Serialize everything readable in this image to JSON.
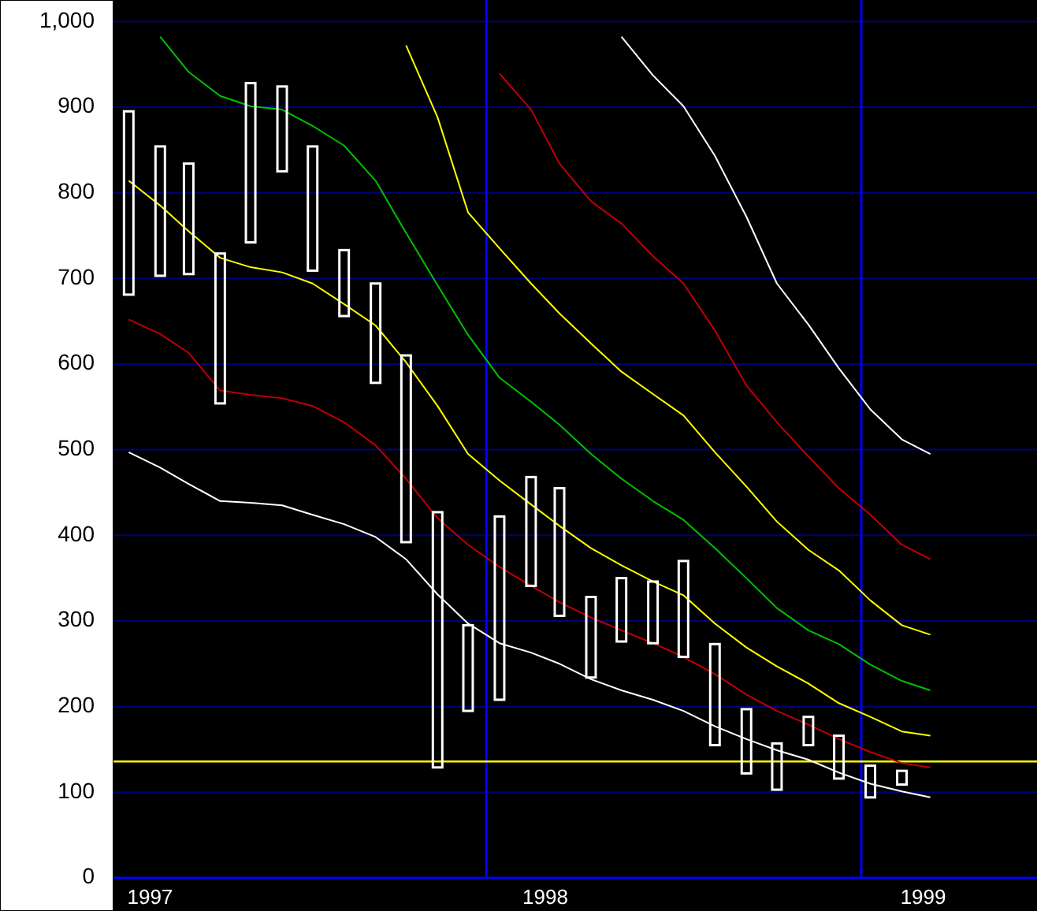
{
  "chart_data": {
    "type": "bar",
    "x": [
      "1997-01",
      "1997-02",
      "1997-03",
      "1997-04",
      "1997-05",
      "1997-06",
      "1997-07",
      "1997-08",
      "1997-09",
      "1997-10",
      "1997-11",
      "1997-12",
      "1998-01",
      "1998-02",
      "1998-03",
      "1998-04",
      "1998-05",
      "1998-06",
      "1998-07",
      "1998-08",
      "1998-09",
      "1998-10",
      "1998-11",
      "1998-12",
      "1999-01",
      "1999-02"
    ],
    "xlim": [
      "1996-12-17",
      "1999-06-14"
    ],
    "xticks": [
      {
        "value": "1997-01-22",
        "label": "1997"
      },
      {
        "value": "1998-02-15",
        "label": "1998"
      },
      {
        "value": "1999-02-22",
        "label": "1999"
      }
    ],
    "ylim": [
      0,
      1025
    ],
    "yticks": [
      0,
      100,
      200,
      300,
      400,
      500,
      600,
      700,
      800,
      900,
      {
        "value": 1000,
        "label": "1,000"
      }
    ],
    "grid": "y",
    "ref_lines": [
      {
        "axis": "x",
        "value": "1997-12-19",
        "color": "#0000ff"
      },
      {
        "axis": "x",
        "value": "1998-12-23",
        "color": "#0000ff"
      },
      {
        "axis": "y",
        "value": 136,
        "color": "#ffff00"
      }
    ],
    "series": [
      {
        "color": "#ffffff",
        "base": [
          681,
          703,
          705,
          554,
          742,
          825,
          709,
          656,
          578,
          392,
          129,
          195,
          208,
          341,
          306,
          234,
          276,
          274,
          258,
          155,
          122,
          103,
          155,
          116,
          94,
          109
        ],
        "values": [
          214,
          151,
          129,
          175,
          186,
          99,
          145,
          77,
          116,
          218,
          298,
          100,
          214,
          127,
          149,
          94,
          74,
          72,
          112,
          118,
          75,
          54,
          33,
          50,
          37,
          16
        ]
      },
      {
        "type": "line",
        "color": "#ffffff",
        "x": [
          "1997-01",
          "1997-02",
          "1997-03",
          "1997-04",
          "1997-05",
          "1997-06",
          "1997-07",
          "1997-08",
          "1997-09",
          "1997-10",
          "1997-11",
          "1997-12",
          "1998-01",
          "1998-02",
          "1998-03",
          "1998-04",
          "1998-05",
          "1998-06",
          "1998-07",
          "1998-08",
          "1998-09",
          "1998-10",
          "1998-11",
          "1998-12",
          "1999-01",
          "1999-02",
          "1999-03"
        ],
        "values": [
          497,
          479,
          460,
          440,
          438,
          435,
          424,
          413,
          398,
          372,
          331,
          297,
          274,
          263,
          250,
          232,
          219,
          208,
          195,
          177,
          162,
          149,
          138,
          123,
          110,
          101,
          94
        ]
      },
      {
        "type": "line",
        "color": "#c00000",
        "x": [
          "1997-01",
          "1997-02",
          "1997-03",
          "1997-04",
          "1997-05",
          "1997-06",
          "1997-07",
          "1997-08",
          "1997-09",
          "1997-10",
          "1997-11",
          "1997-12",
          "1998-01",
          "1998-02",
          "1998-03",
          "1998-04",
          "1998-05",
          "1998-06",
          "1998-07",
          "1998-08",
          "1998-09",
          "1998-10",
          "1998-11",
          "1998-12",
          "1999-01",
          "1999-02",
          "1999-03"
        ],
        "values": [
          652,
          635,
          613,
          569,
          564,
          560,
          551,
          532,
          505,
          466,
          420,
          389,
          363,
          341,
          322,
          304,
          289,
          274,
          258,
          238,
          214,
          195,
          179,
          162,
          147,
          134,
          129
        ]
      },
      {
        "type": "line",
        "color": "#ffff00",
        "x": [
          "1997-01",
          "1997-02",
          "1997-03",
          "1997-04",
          "1997-05",
          "1997-06",
          "1997-07",
          "1997-08",
          "1997-09",
          "1997-10",
          "1997-11",
          "1997-12",
          "1998-01",
          "1998-02",
          "1998-03",
          "1998-04",
          "1998-05",
          "1998-06",
          "1998-07",
          "1998-08",
          "1998-09",
          "1998-10",
          "1998-11",
          "1998-12",
          "1999-01",
          "1999-02",
          "1999-03"
        ],
        "values": [
          814,
          785,
          755,
          724,
          713,
          707,
          694,
          670,
          645,
          602,
          551,
          495,
          464,
          436,
          411,
          385,
          365,
          346,
          330,
          297,
          269,
          247,
          227,
          204,
          188,
          171,
          166
        ]
      },
      {
        "type": "line",
        "color": "#00c000",
        "x": [
          "1997-02",
          "1997-03",
          "1997-04",
          "1997-05",
          "1997-06",
          "1997-07",
          "1997-08",
          "1997-09",
          "1997-10",
          "1997-11",
          "1997-12",
          "1998-01",
          "1998-02",
          "1998-03",
          "1998-04",
          "1998-05",
          "1998-06",
          "1998-07",
          "1998-08",
          "1998-09",
          "1998-10",
          "1998-11",
          "1998-12",
          "1999-01",
          "1999-02",
          "1999-03"
        ],
        "values": [
          982,
          941,
          913,
          901,
          897,
          878,
          855,
          814,
          753,
          692,
          634,
          584,
          556,
          529,
          495,
          466,
          440,
          418,
          385,
          350,
          315,
          289,
          273,
          249,
          230,
          219
        ]
      },
      {
        "type": "line",
        "color": "#ffff00",
        "x": [
          "1997-10",
          "1997-11",
          "1997-12",
          "1998-01",
          "1998-02",
          "1998-03",
          "1998-04",
          "1998-05",
          "1998-06",
          "1998-07",
          "1998-08",
          "1998-09",
          "1998-10",
          "1998-11",
          "1998-12",
          "1999-01",
          "1999-02",
          "1999-03"
        ],
        "values": [
          972,
          888,
          777,
          735,
          694,
          659,
          624,
          591,
          565,
          540,
          497,
          457,
          416,
          383,
          359,
          324,
          295,
          284
        ]
      },
      {
        "type": "line",
        "color": "#c00000",
        "x": [
          "1998-01",
          "1998-02",
          "1998-03",
          "1998-04",
          "1998-05",
          "1998-06",
          "1998-07",
          "1998-08",
          "1998-09",
          "1998-10",
          "1998-11",
          "1998-12",
          "1999-01",
          "1999-02",
          "1999-03"
        ],
        "values": [
          939,
          897,
          834,
          790,
          764,
          726,
          694,
          639,
          575,
          532,
          492,
          455,
          424,
          389,
          372
        ]
      },
      {
        "type": "line",
        "color": "#ffffff",
        "x": [
          "1998-05",
          "1998-06",
          "1998-07",
          "1998-08",
          "1998-09",
          "1998-10",
          "1998-11",
          "1998-12",
          "1999-01",
          "1999-02",
          "1999-03"
        ],
        "values": [
          982,
          937,
          901,
          843,
          772,
          694,
          646,
          595,
          547,
          512,
          495
        ]
      }
    ]
  }
}
